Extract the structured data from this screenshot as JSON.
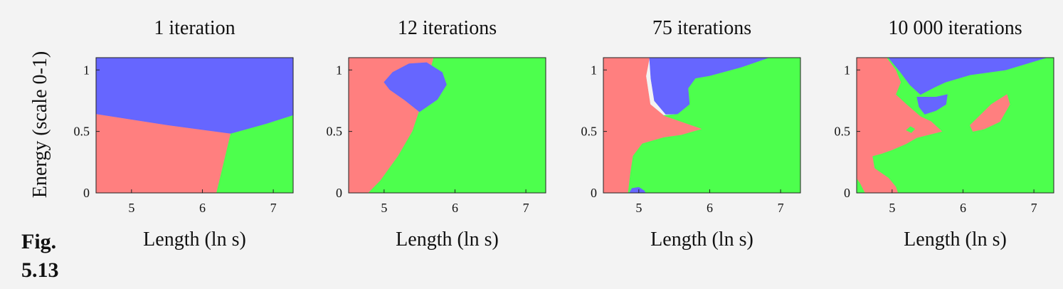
{
  "figure_label": "Fig. 5.13",
  "colors": {
    "red": "#ff7f7f",
    "blue": "#6666ff",
    "green": "#4dff4d",
    "axis": "#222222"
  },
  "chart_data": [
    {
      "type": "region-map",
      "title": "1 iteration",
      "xlabel": "Length (ln s)",
      "ylabel": "Energy (scale 0-1)",
      "xlim": [
        4.5,
        7.28
      ],
      "ylim": [
        0,
        1.1
      ],
      "xticks": [
        5,
        6,
        7
      ],
      "xtick_labels": [
        "5",
        "6",
        "7"
      ],
      "yticks": [
        0,
        0.5,
        1
      ],
      "ytick_labels": [
        "0",
        "0.5",
        "1"
      ],
      "regions": [
        {
          "class": "blue",
          "polygons": [
            [
              [
                4.5,
                1.1
              ],
              [
                7.28,
                1.1
              ],
              [
                7.28,
                0.63
              ],
              [
                6.9,
                0.56
              ],
              [
                6.4,
                0.48
              ],
              [
                5.5,
                0.55
              ],
              [
                4.5,
                0.64
              ]
            ]
          ]
        },
        {
          "class": "red",
          "polygons": [
            [
              [
                4.5,
                0.64
              ],
              [
                5.5,
                0.55
              ],
              [
                6.4,
                0.48
              ],
              [
                6.2,
                0
              ],
              [
                4.5,
                0
              ]
            ]
          ]
        },
        {
          "class": "green",
          "polygons": [
            [
              [
                6.4,
                0.48
              ],
              [
                6.9,
                0.56
              ],
              [
                7.28,
                0.63
              ],
              [
                7.28,
                0
              ],
              [
                6.2,
                0
              ]
            ]
          ]
        }
      ]
    },
    {
      "type": "region-map",
      "title": "12 iterations",
      "xlabel": "Length (ln s)",
      "ylabel": "",
      "xlim": [
        4.5,
        7.28
      ],
      "ylim": [
        0,
        1.1
      ],
      "xticks": [
        5,
        6,
        7
      ],
      "xtick_labels": [
        "5",
        "6",
        "7"
      ],
      "yticks": [
        0,
        0.5,
        1
      ],
      "ytick_labels": [
        "0",
        "0.5",
        "1"
      ],
      "regions": [
        {
          "class": "red",
          "polygons": [
            [
              [
                4.5,
                1.1
              ],
              [
                5.7,
                1.1
              ],
              [
                5.5,
                0.67
              ],
              [
                5.4,
                0.5
              ],
              [
                5.2,
                0.3
              ],
              [
                4.95,
                0.1
              ],
              [
                4.78,
                0
              ],
              [
                4.5,
                0
              ]
            ]
          ]
        },
        {
          "class": "green",
          "polygons": [
            [
              [
                5.7,
                1.1
              ],
              [
                7.28,
                1.1
              ],
              [
                7.28,
                0
              ],
              [
                4.78,
                0
              ],
              [
                4.95,
                0.1
              ],
              [
                5.2,
                0.3
              ],
              [
                5.4,
                0.5
              ],
              [
                5.5,
                0.67
              ]
            ]
          ]
        },
        {
          "class": "blue",
          "polygons": [
            [
              [
                5.5,
                0.66
              ],
              [
                5.28,
                0.76
              ],
              [
                5.08,
                0.84
              ],
              [
                5.0,
                0.9
              ],
              [
                5.12,
                0.98
              ],
              [
                5.35,
                1.05
              ],
              [
                5.6,
                1.06
              ],
              [
                5.82,
                0.98
              ],
              [
                5.88,
                0.88
              ],
              [
                5.75,
                0.76
              ]
            ]
          ]
        }
      ]
    },
    {
      "type": "region-map",
      "title": "75 iterations",
      "xlabel": "Length (ln s)",
      "ylabel": "",
      "xlim": [
        4.5,
        7.28
      ],
      "ylim": [
        0,
        1.1
      ],
      "xticks": [
        5,
        6,
        7
      ],
      "xtick_labels": [
        "5",
        "6",
        "7"
      ],
      "yticks": [
        0,
        0.5,
        1
      ],
      "ytick_labels": [
        "0",
        "0.5",
        "1"
      ],
      "regions": [
        {
          "class": "red",
          "polygons": [
            [
              [
                4.5,
                1.1
              ],
              [
                5.15,
                1.1
              ],
              [
                5.1,
                0.95
              ],
              [
                5.16,
                0.72
              ],
              [
                5.35,
                0.63
              ],
              [
                5.6,
                0.58
              ],
              [
                5.9,
                0.52
              ],
              [
                5.6,
                0.47
              ],
              [
                5.35,
                0.45
              ],
              [
                5.05,
                0.4
              ],
              [
                4.92,
                0.3
              ],
              [
                4.88,
                0.15
              ],
              [
                4.85,
                0
              ],
              [
                4.5,
                0
              ]
            ]
          ]
        },
        {
          "class": "blue",
          "polygons": [
            [
              [
                5.15,
                1.1
              ],
              [
                6.85,
                1.1
              ],
              [
                6.45,
                1.02
              ],
              [
                6.0,
                0.95
              ],
              [
                5.8,
                0.93
              ],
              [
                5.7,
                0.85
              ],
              [
                5.72,
                0.72
              ],
              [
                5.55,
                0.64
              ],
              [
                5.38,
                0.64
              ],
              [
                5.22,
                0.75
              ],
              [
                5.17,
                0.93
              ]
            ]
          ]
        },
        {
          "class": "blue",
          "polygons": [
            [
              [
                4.86,
                0
              ],
              [
                4.9,
                0.04
              ],
              [
                5.0,
                0.05
              ],
              [
                5.08,
                0.02
              ],
              [
                5.1,
                0
              ]
            ]
          ]
        },
        {
          "class": "green",
          "polygons": [
            [
              [
                6.85,
                1.1
              ],
              [
                7.28,
                1.1
              ],
              [
                7.28,
                0
              ],
              [
                5.1,
                0
              ],
              [
                5.08,
                0.02
              ],
              [
                5.0,
                0.05
              ],
              [
                4.9,
                0.04
              ],
              [
                4.86,
                0
              ],
              [
                4.85,
                0
              ],
              [
                4.88,
                0.15
              ],
              [
                4.92,
                0.3
              ],
              [
                5.05,
                0.4
              ],
              [
                5.35,
                0.45
              ],
              [
                5.6,
                0.47
              ],
              [
                5.9,
                0.52
              ],
              [
                5.6,
                0.58
              ],
              [
                5.35,
                0.63
              ],
              [
                5.55,
                0.64
              ],
              [
                5.72,
                0.72
              ],
              [
                5.7,
                0.85
              ],
              [
                5.8,
                0.93
              ],
              [
                6.0,
                0.95
              ],
              [
                6.45,
                1.02
              ]
            ]
          ]
        }
      ]
    },
    {
      "type": "region-map",
      "title": "10 000 iterations",
      "xlabel": "Length (ln s)",
      "ylabel": "",
      "xlim": [
        4.5,
        7.28
      ],
      "ylim": [
        0,
        1.1
      ],
      "xticks": [
        5,
        6,
        7
      ],
      "xtick_labels": [
        "5",
        "6",
        "7"
      ],
      "yticks": [
        0,
        0.5,
        1
      ],
      "ytick_labels": [
        "0",
        "0.5",
        "1"
      ],
      "regions": [
        {
          "class": "green",
          "polygons": [
            [
              [
                4.5,
                0
              ],
              [
                7.28,
                0
              ],
              [
                7.28,
                1.1
              ],
              [
                4.5,
                1.1
              ]
            ]
          ]
        },
        {
          "class": "red",
          "polygons": [
            [
              [
                4.5,
                1.1
              ],
              [
                4.92,
                1.1
              ],
              [
                5.05,
                1.0
              ],
              [
                5.12,
                0.9
              ],
              [
                5.05,
                0.8
              ],
              [
                5.2,
                0.72
              ],
              [
                5.4,
                0.62
              ],
              [
                5.55,
                0.58
              ],
              [
                5.7,
                0.5
              ],
              [
                5.35,
                0.45
              ],
              [
                5.2,
                0.4
              ],
              [
                5.0,
                0.35
              ],
              [
                4.85,
                0.32
              ],
              [
                4.72,
                0.3
              ],
              [
                4.75,
                0.2
              ],
              [
                4.95,
                0.12
              ],
              [
                5.05,
                0.05
              ],
              [
                5.08,
                0
              ],
              [
                4.62,
                0
              ],
              [
                4.55,
                0.08
              ],
              [
                4.5,
                0.12
              ]
            ]
          ]
        },
        {
          "class": "blue",
          "polygons": [
            [
              [
                4.95,
                1.1
              ],
              [
                7.18,
                1.1
              ],
              [
                6.6,
                1.0
              ],
              [
                6.1,
                0.96
              ],
              [
                5.75,
                0.9
              ],
              [
                5.6,
                0.86
              ],
              [
                5.4,
                0.8
              ],
              [
                5.25,
                0.88
              ],
              [
                5.12,
                0.98
              ]
            ]
          ]
        },
        {
          "class": "blue",
          "polygons": [
            [
              [
                5.35,
                0.78
              ],
              [
                5.62,
                0.78
              ],
              [
                5.78,
                0.8
              ],
              [
                5.76,
                0.72
              ],
              [
                5.62,
                0.67
              ],
              [
                5.46,
                0.64
              ],
              [
                5.38,
                0.7
              ]
            ]
          ]
        },
        {
          "class": "red",
          "polygons": [
            [
              [
                6.1,
                0.55
              ],
              [
                6.4,
                0.72
              ],
              [
                6.62,
                0.8
              ],
              [
                6.66,
                0.72
              ],
              [
                6.52,
                0.58
              ],
              [
                6.3,
                0.52
              ],
              [
                6.14,
                0.5
              ]
            ]
          ]
        },
        {
          "class": "green",
          "polygons": [
            [
              [
                5.2,
                0.82
              ],
              [
                5.28,
                0.84
              ],
              [
                5.34,
                0.82
              ],
              [
                5.28,
                0.79
              ]
            ]
          ]
        },
        {
          "class": "green",
          "polygons": [
            [
              [
                5.2,
                0.51
              ],
              [
                5.26,
                0.54
              ],
              [
                5.32,
                0.52
              ],
              [
                5.27,
                0.49
              ]
            ]
          ]
        }
      ]
    }
  ]
}
